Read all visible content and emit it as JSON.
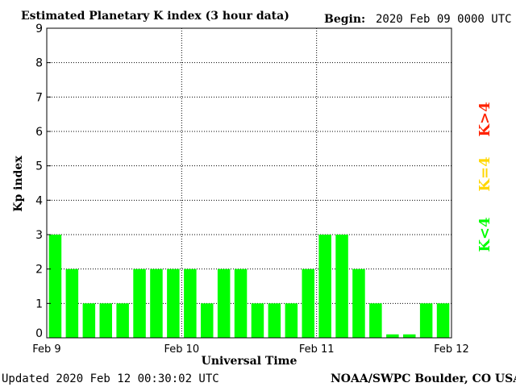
{
  "colors": {
    "bar_quiet": "#00ff00",
    "bar_active": "#ffd700",
    "bar_storm": "#ff2200",
    "axis": "#000000",
    "grid": "#000000"
  },
  "header": {
    "title": "Estimated Planetary K index (3 hour data)",
    "begin_label": "Begin:",
    "begin_value": "2020 Feb 09 0000 UTC"
  },
  "footer": {
    "updated": "Updated 2020 Feb 12 00:30:02 UTC",
    "source": "NOAA/SWPC Boulder, CO USA"
  },
  "legend": [
    {
      "label": "K>4",
      "color": "#ff2200"
    },
    {
      "label": "K=4",
      "color": "#ffd700"
    },
    {
      "label": "K<4",
      "color": "#00ff00"
    }
  ],
  "chart_data": {
    "type": "bar",
    "title": "Estimated Planetary K index (3 hour data)",
    "xlabel": "Universal Time",
    "ylabel": "Kp index",
    "ylim": [
      0,
      9
    ],
    "yticks": [
      0,
      1,
      2,
      3,
      4,
      5,
      6,
      7,
      8,
      9
    ],
    "xticks": [
      "Feb 9",
      "Feb 10",
      "Feb 11",
      "Feb 12"
    ],
    "grid": true,
    "values": [
      3,
      2,
      1,
      1,
      1,
      2,
      2,
      2,
      2,
      1,
      2,
      2,
      1,
      1,
      1,
      2,
      3,
      3,
      2,
      1,
      0.1,
      0.1,
      1,
      1
    ]
  }
}
